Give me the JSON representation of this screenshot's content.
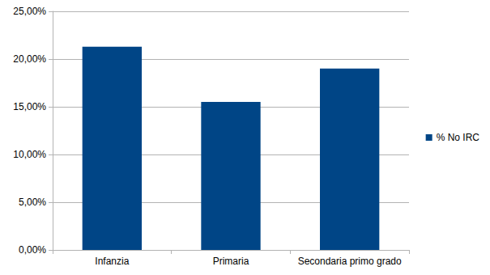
{
  "chart_data": {
    "type": "bar",
    "categories": [
      "Infanzia",
      "Primaria",
      "Secondaria primo grado"
    ],
    "series": [
      {
        "name": "% No IRC",
        "color": "#004586",
        "values": [
          21.3,
          15.5,
          19.0
        ]
      }
    ],
    "ylim": [
      0,
      25
    ],
    "yticks": [
      {
        "value": 0,
        "label": "0,00%"
      },
      {
        "value": 5,
        "label": "5,00%"
      },
      {
        "value": 10,
        "label": "10,00%"
      },
      {
        "value": 15,
        "label": "15,00%"
      },
      {
        "value": 20,
        "label": "20,00%"
      },
      {
        "value": 25,
        "label": "25,00%"
      }
    ],
    "grid": true,
    "legend": "right"
  }
}
